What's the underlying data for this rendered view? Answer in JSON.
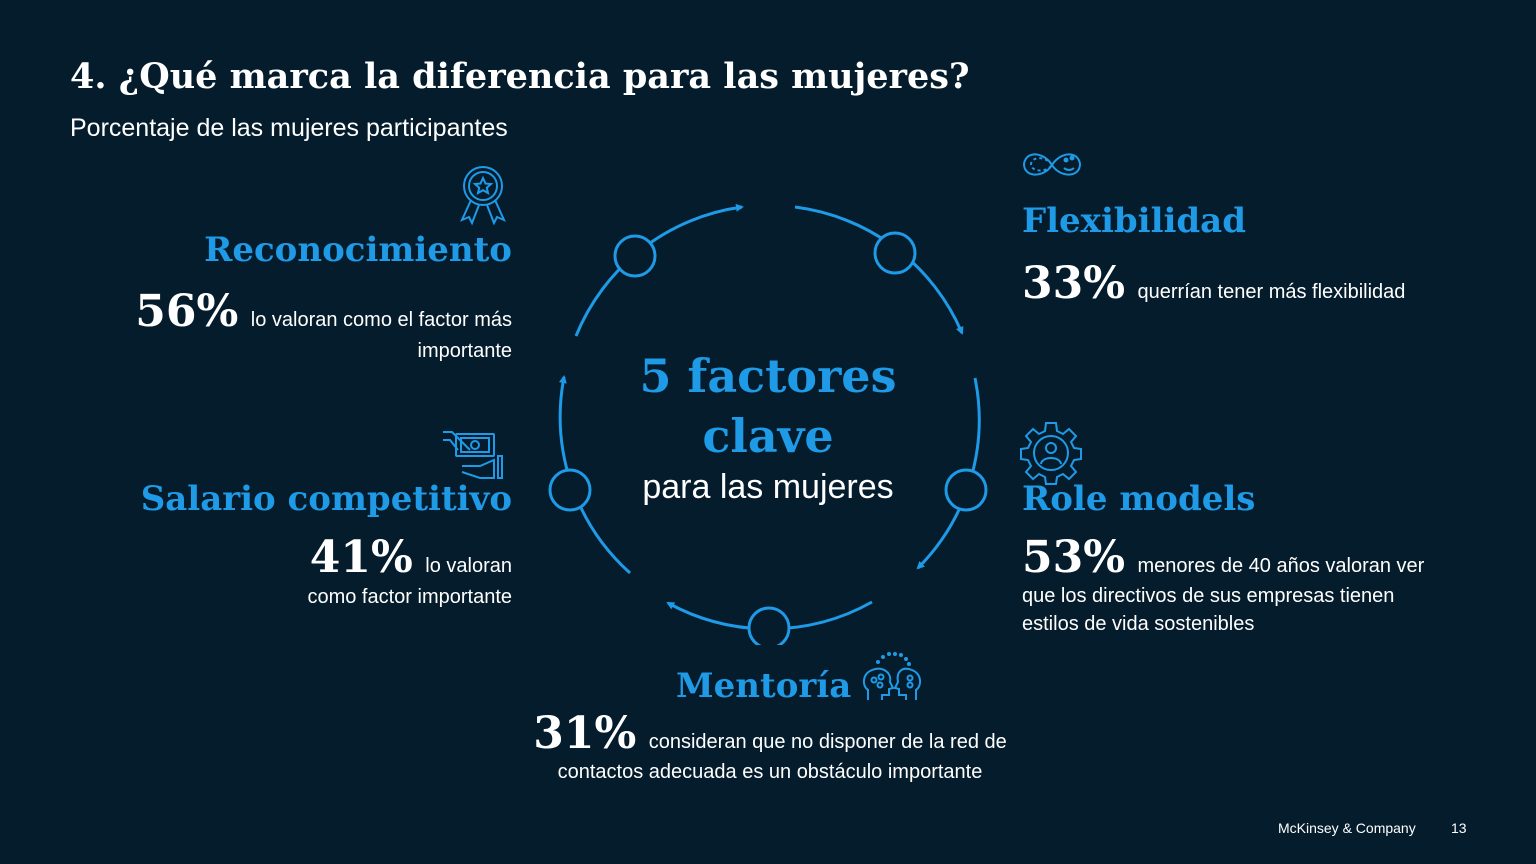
{
  "title": "4. ¿Qué marca la diferencia para las mujeres?",
  "subtitle": "Porcentaje de las mujeres participantes",
  "center": {
    "line1": "5 factores",
    "line2": "clave",
    "line3": "para las mujeres"
  },
  "factors": {
    "reconocimiento": {
      "heading": "Reconocimiento",
      "percent": "56%",
      "text_line1": "lo valoran  como el factor más",
      "text_line2": "importante",
      "icon": "award-ribbon-icon"
    },
    "salario": {
      "heading": "Salario competitivo",
      "percent": "41%",
      "text_line1": "lo valoran",
      "text_line2": "como factor importante",
      "icon": "money-hand-icon"
    },
    "mentoria": {
      "heading": "Mentoría",
      "percent": "31%",
      "text_line1": "consideran que no disponer de la red de",
      "text_line2": "contactos adecuada es un obstáculo importante",
      "icon": "mentoring-heads-icon"
    },
    "flexibilidad": {
      "heading": "Flexibilidad",
      "percent": "33%",
      "text_line1": "querrían tener más flexibilidad",
      "icon": "infinity-icon"
    },
    "role_models": {
      "heading": "Role models",
      "percent": "53%",
      "text_line1": "menores de 40 años valoran ver",
      "text_line2": "que los directivos de sus empresas tienen",
      "text_line3": "estilos de vida sostenibles",
      "icon": "gear-person-icon"
    }
  },
  "footer": {
    "brand": "McKinsey & Company",
    "page": "13"
  },
  "colors": {
    "background": "#051c2c",
    "accent": "#1f9ae6",
    "text": "#ffffff"
  }
}
